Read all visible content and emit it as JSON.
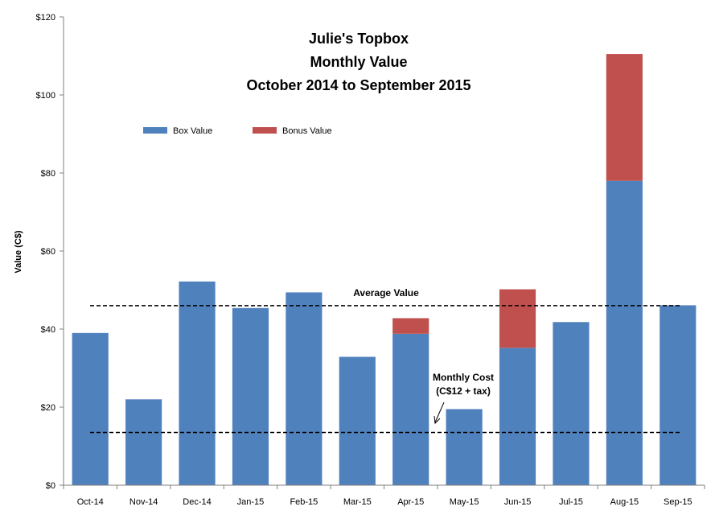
{
  "chart_data": {
    "type": "bar",
    "stacked": true,
    "title_lines": [
      "Julie's Topbox",
      "Monthly Value",
      "October 2014 to September 2015"
    ],
    "xlabel": "",
    "ylabel": "Value (C$)",
    "ylim": [
      0,
      120
    ],
    "yticks": [
      0,
      20,
      40,
      60,
      80,
      100,
      120
    ],
    "ytick_labels": [
      "$0",
      "$20",
      "$40",
      "$60",
      "$80",
      "$100",
      "$120"
    ],
    "categories": [
      "Oct-14",
      "Nov-14",
      "Dec-14",
      "Jan-15",
      "Feb-15",
      "Mar-15",
      "Apr-15",
      "May-15",
      "Jun-15",
      "Jul-15",
      "Aug-15",
      "Sep-15"
    ],
    "series": [
      {
        "name": "Box Value",
        "color": "#4F81BD",
        "values": [
          39,
          22,
          52.2,
          45.4,
          49.4,
          32.9,
          38.8,
          19.5,
          35.2,
          41.8,
          78,
          46.1
        ]
      },
      {
        "name": "Bonus Value",
        "color": "#C0504D",
        "values": [
          0,
          0,
          0,
          0,
          0,
          0,
          4,
          0,
          15,
          0,
          32.5,
          0
        ]
      }
    ],
    "legend_position": "top-left",
    "grid": false,
    "reference_lines": [
      {
        "label": "Average Value",
        "value": 46,
        "style": "dashed"
      },
      {
        "label_lines": [
          "Monthly Cost",
          "(C$12 + tax)"
        ],
        "value": 13.5,
        "style": "dashed"
      }
    ]
  }
}
